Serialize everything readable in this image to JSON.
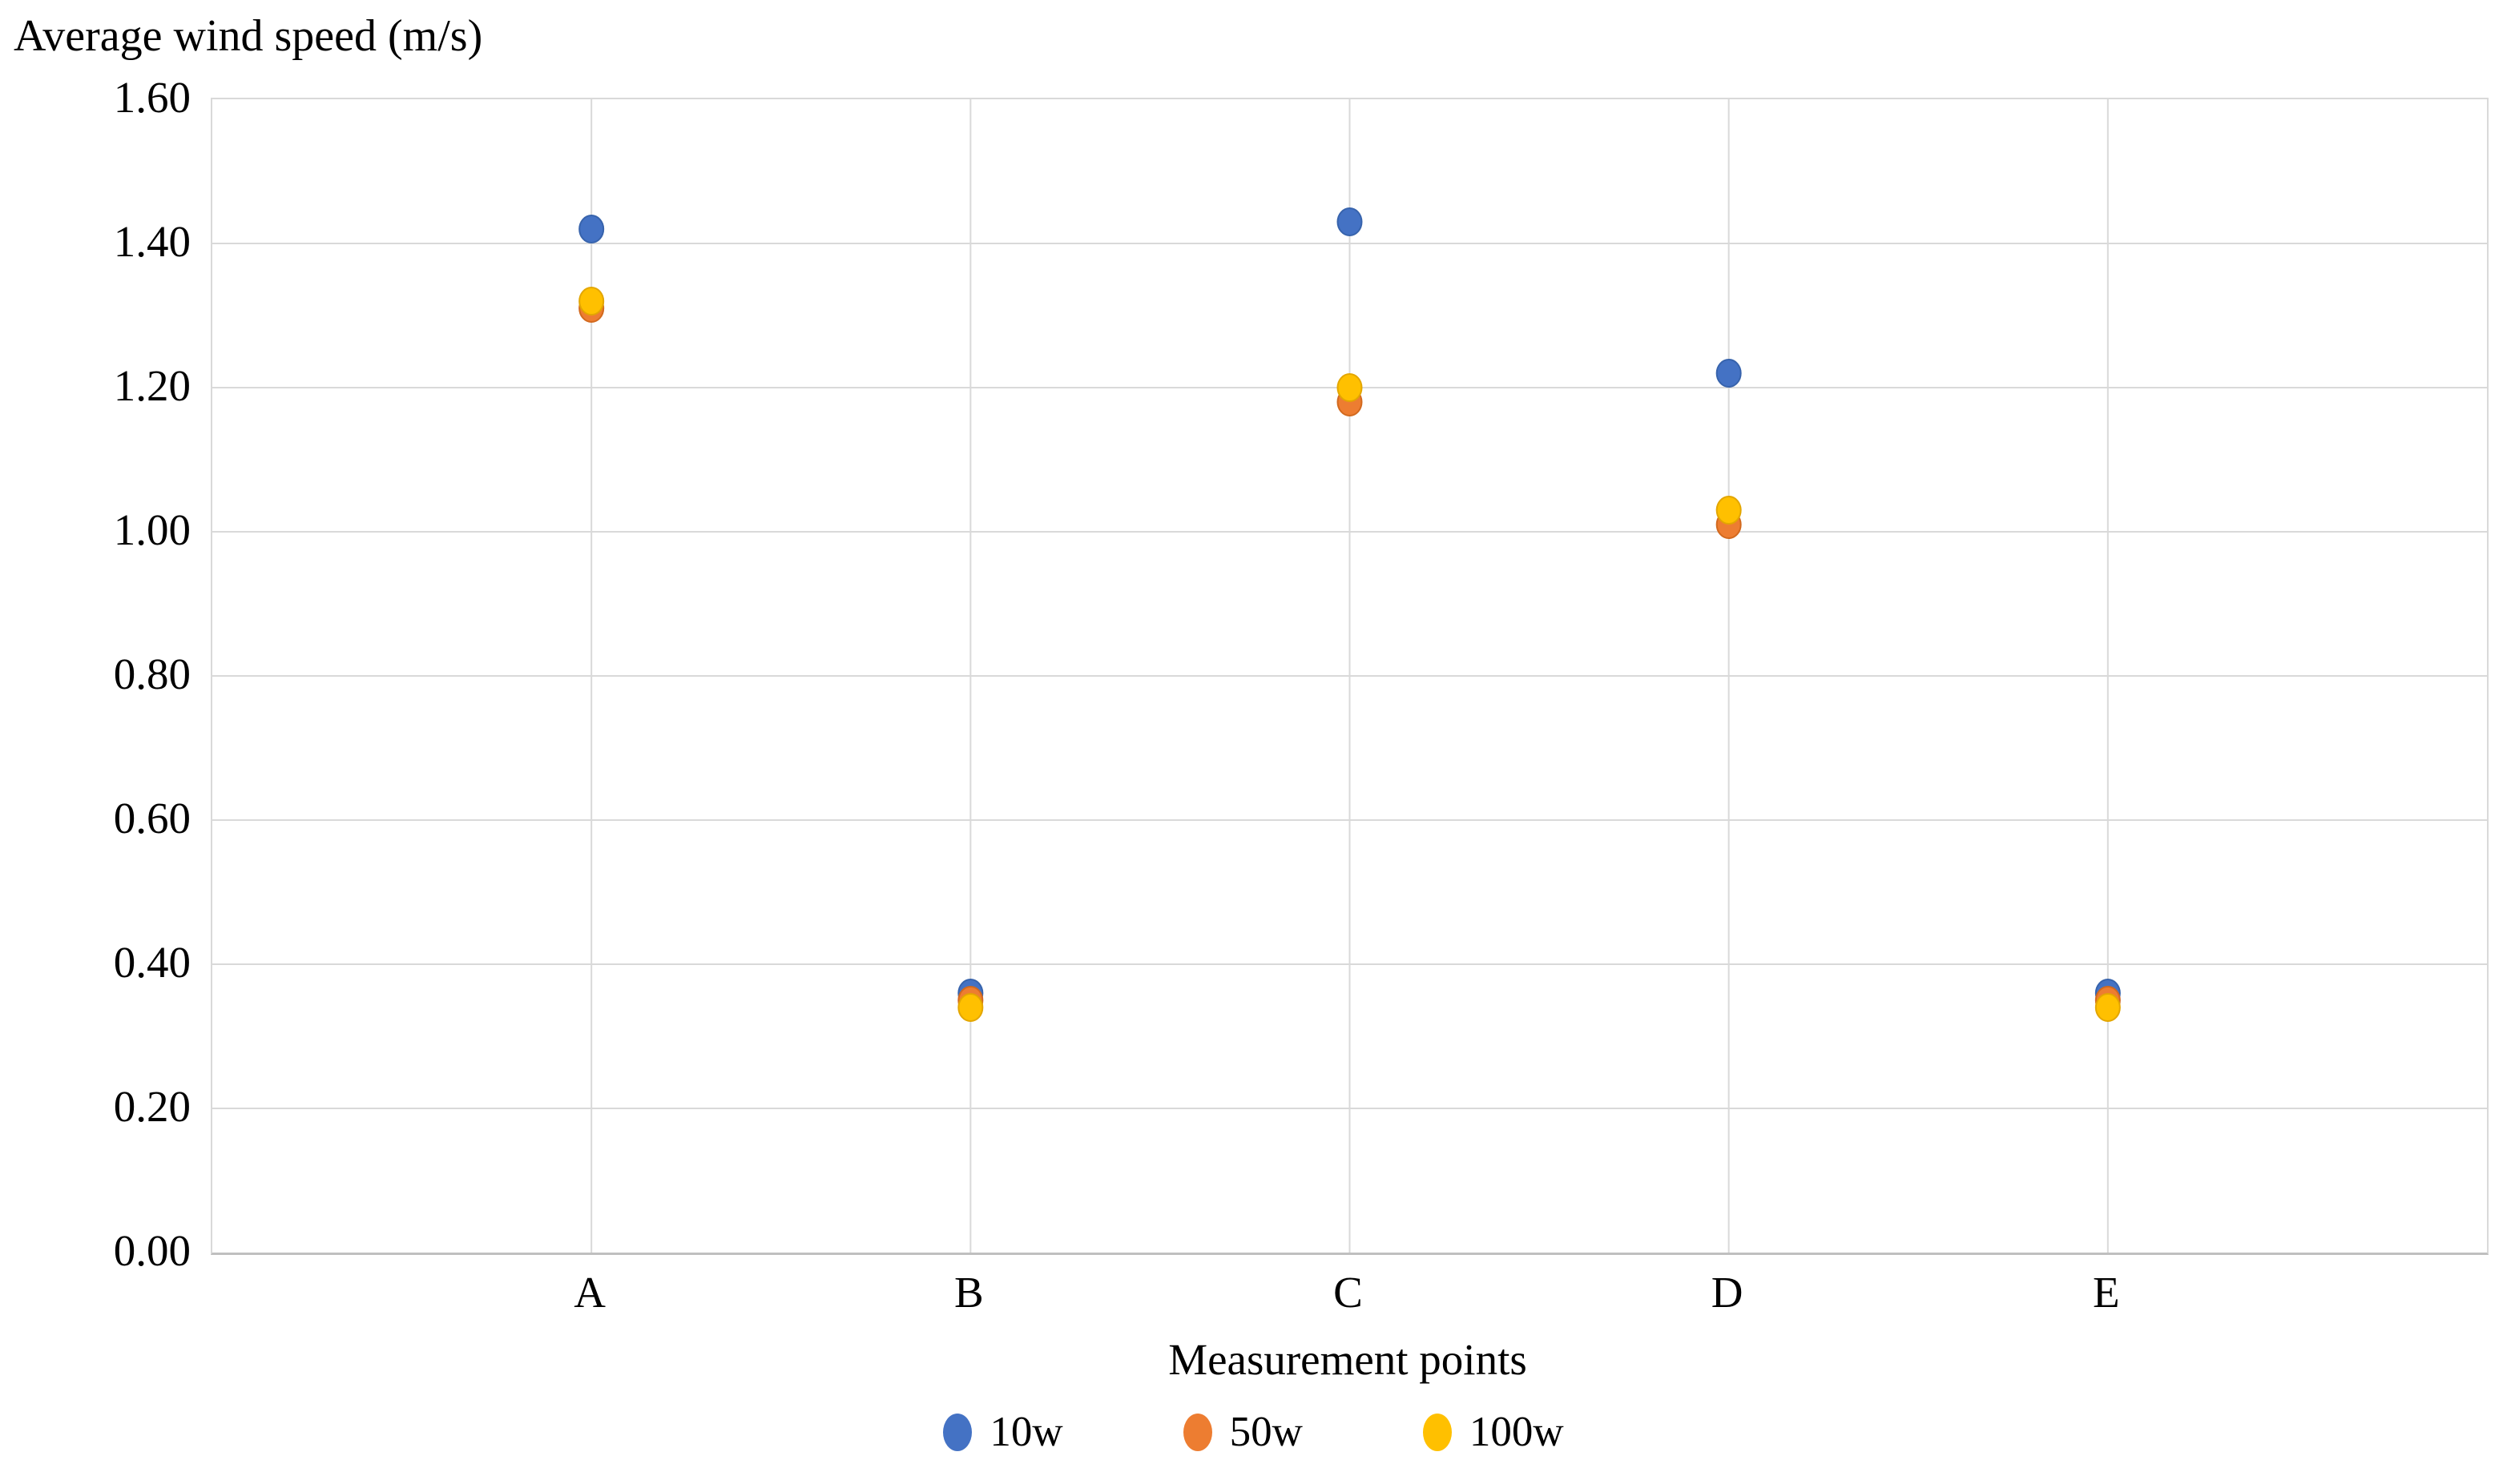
{
  "chart_data": {
    "type": "scatter",
    "title": "Average wind speed (m/s)",
    "xlabel": "Measurement points",
    "ylabel": "Average wind speed (m/s)",
    "categories": [
      "A",
      "B",
      "C",
      "D",
      "E"
    ],
    "series": [
      {
        "name": "10w",
        "color": "#4472C4",
        "border_color": "#3763AC",
        "values": [
          1.42,
          0.36,
          1.43,
          1.22,
          0.36
        ]
      },
      {
        "name": "50w",
        "color": "#ED7D31",
        "border_color": "#D2691E",
        "values": [
          1.31,
          0.35,
          1.18,
          1.01,
          0.35
        ]
      },
      {
        "name": "100w",
        "color": "#FFC000",
        "border_color": "#E3A600",
        "values": [
          1.32,
          0.34,
          1.2,
          1.03,
          0.34
        ]
      }
    ],
    "ylim": [
      0,
      1.6
    ],
    "y_tick_step": 0.2,
    "y_tick_labels": [
      "0.00",
      "0.20",
      "0.40",
      "0.60",
      "0.80",
      "1.00",
      "1.20",
      "1.40",
      "1.60"
    ],
    "grid": true,
    "legend_position": "bottom"
  },
  "colors": {
    "background": "#FFFFFF",
    "gridline": "#D9D9D9",
    "axis_line": "#BFBFBF",
    "text": "#000000"
  }
}
